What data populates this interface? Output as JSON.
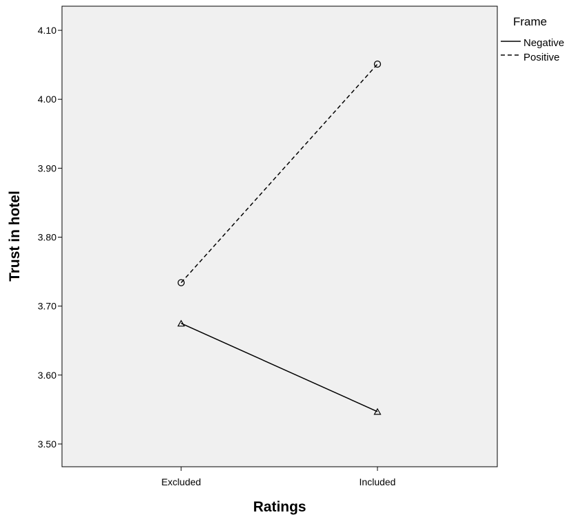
{
  "chart_data": {
    "type": "line",
    "title": "",
    "xlabel": "Ratings",
    "ylabel": "Trust in hotel",
    "categories": [
      "Excluded",
      "Included"
    ],
    "ylim": [
      3.467,
      4.135
    ],
    "yticks": [
      3.5,
      3.6,
      3.7,
      3.8,
      3.9,
      4.0,
      4.1
    ],
    "ytick_labels": [
      "3.50",
      "3.60",
      "3.70",
      "3.80",
      "3.90",
      "4.00",
      "4.10"
    ],
    "grid": false,
    "background_color": "#f0f0f0",
    "line_color": "#000000",
    "legend": {
      "title": "Frame",
      "placement": "right-top-outside"
    },
    "series": [
      {
        "name": "Negative",
        "values": [
          3.675,
          3.547
        ],
        "line_style": "solid",
        "marker": "triangle"
      },
      {
        "name": "Positive",
        "values": [
          3.734,
          4.051
        ],
        "line_style": "dashed",
        "marker": "circle"
      }
    ]
  }
}
